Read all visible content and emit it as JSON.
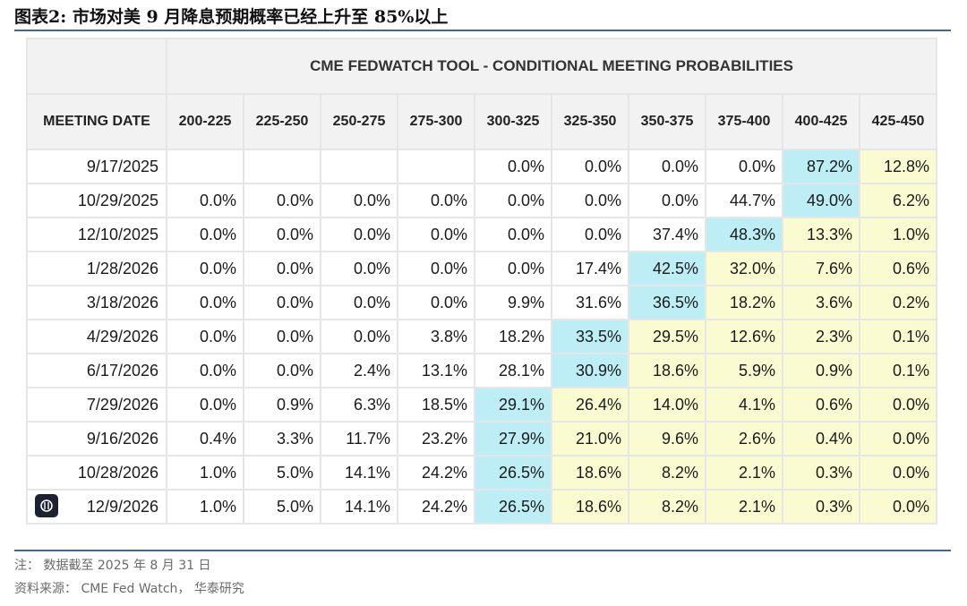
{
  "figure_title": "图表2:   市场对美 9 月降息预期概率已经上升至 85%以上",
  "chart_data": {
    "type": "table",
    "title": "CME FEDWATCH TOOL - CONDITIONAL MEETING PROBABILITIES",
    "row_header_label": "MEETING DATE",
    "columns": [
      "200-225",
      "225-250",
      "250-275",
      "275-300",
      "300-325",
      "325-350",
      "350-375",
      "375-400",
      "400-425",
      "425-450"
    ],
    "rows": [
      {
        "date": "9/17/2025",
        "values": [
          "",
          "",
          "",
          "",
          "0.0%",
          "0.0%",
          "0.0%",
          "0.0%",
          "87.2%",
          "12.8%"
        ]
      },
      {
        "date": "10/29/2025",
        "values": [
          "0.0%",
          "0.0%",
          "0.0%",
          "0.0%",
          "0.0%",
          "0.0%",
          "0.0%",
          "44.7%",
          "49.0%",
          "6.2%"
        ]
      },
      {
        "date": "12/10/2025",
        "values": [
          "0.0%",
          "0.0%",
          "0.0%",
          "0.0%",
          "0.0%",
          "0.0%",
          "37.4%",
          "48.3%",
          "13.3%",
          "1.0%"
        ]
      },
      {
        "date": "1/28/2026",
        "values": [
          "0.0%",
          "0.0%",
          "0.0%",
          "0.0%",
          "0.0%",
          "17.4%",
          "42.5%",
          "32.0%",
          "7.6%",
          "0.6%"
        ]
      },
      {
        "date": "3/18/2026",
        "values": [
          "0.0%",
          "0.0%",
          "0.0%",
          "0.0%",
          "9.9%",
          "31.6%",
          "36.5%",
          "18.2%",
          "3.6%",
          "0.2%"
        ]
      },
      {
        "date": "4/29/2026",
        "values": [
          "0.0%",
          "0.0%",
          "0.0%",
          "3.8%",
          "18.2%",
          "33.5%",
          "29.5%",
          "12.6%",
          "2.3%",
          "0.1%"
        ]
      },
      {
        "date": "6/17/2026",
        "values": [
          "0.0%",
          "0.0%",
          "2.4%",
          "13.1%",
          "28.1%",
          "30.9%",
          "18.6%",
          "5.9%",
          "0.9%",
          "0.1%"
        ]
      },
      {
        "date": "7/29/2026",
        "values": [
          "0.0%",
          "0.9%",
          "6.3%",
          "18.5%",
          "29.1%",
          "26.4%",
          "14.0%",
          "4.1%",
          "0.6%",
          "0.0%"
        ]
      },
      {
        "date": "9/16/2026",
        "values": [
          "0.4%",
          "3.3%",
          "11.7%",
          "23.2%",
          "27.9%",
          "21.0%",
          "9.6%",
          "2.6%",
          "0.4%",
          "0.0%"
        ]
      },
      {
        "date": "10/28/2026",
        "values": [
          "1.0%",
          "5.0%",
          "14.1%",
          "24.2%",
          "26.5%",
          "18.6%",
          "8.2%",
          "2.1%",
          "0.3%",
          "0.0%"
        ]
      },
      {
        "date": "12/9/2026",
        "values": [
          "1.0%",
          "5.0%",
          "14.1%",
          "24.2%",
          "26.5%",
          "18.6%",
          "8.2%",
          "2.1%",
          "0.3%",
          "0.0%"
        ]
      }
    ],
    "highlight_colors": {
      "max": "#bdeef5",
      "above_max_rate": "#fbfbd2",
      "blank": "#ffffff"
    },
    "highlights": [
      [
        "blank",
        "blank",
        "blank",
        "blank",
        "none",
        "none",
        "none",
        "none",
        "max",
        "above"
      ],
      [
        "none",
        "none",
        "none",
        "none",
        "none",
        "none",
        "none",
        "none",
        "max",
        "above"
      ],
      [
        "none",
        "none",
        "none",
        "none",
        "none",
        "none",
        "none",
        "max",
        "above",
        "above"
      ],
      [
        "none",
        "none",
        "none",
        "none",
        "none",
        "none",
        "max",
        "above",
        "above",
        "above"
      ],
      [
        "none",
        "none",
        "none",
        "none",
        "none",
        "none",
        "max",
        "above",
        "above",
        "above"
      ],
      [
        "none",
        "none",
        "none",
        "none",
        "none",
        "max",
        "above",
        "above",
        "above",
        "above"
      ],
      [
        "none",
        "none",
        "none",
        "none",
        "none",
        "max",
        "above",
        "above",
        "above",
        "above"
      ],
      [
        "none",
        "none",
        "none",
        "none",
        "max",
        "above",
        "above",
        "above",
        "above",
        "above"
      ],
      [
        "none",
        "none",
        "none",
        "none",
        "max",
        "above",
        "above",
        "above",
        "above",
        "above"
      ],
      [
        "none",
        "none",
        "none",
        "none",
        "max",
        "above",
        "above",
        "above",
        "above",
        "above"
      ],
      [
        "none",
        "none",
        "none",
        "none",
        "max",
        "above",
        "above",
        "above",
        "above",
        "above"
      ]
    ]
  },
  "note": "注： 数据截至 2025 年 8 月 31 日",
  "source": "资料来源： CME Fed Watch， 华泰研究",
  "badge_icon": "app-badge-icon"
}
